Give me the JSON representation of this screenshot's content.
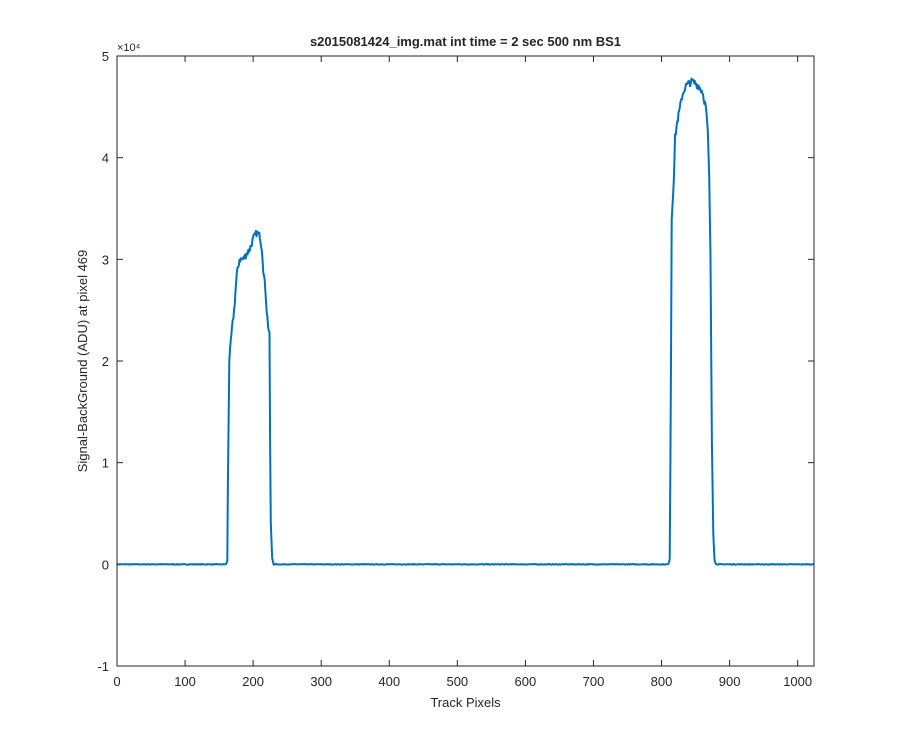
{
  "chart_data": {
    "type": "line",
    "title": "s2015081424_img.mat int time = 2 sec  500 nm BS1",
    "xlabel": "Track Pixels",
    "ylabel": "Signal-BackGround (ADU) at pixel 469",
    "xlim": [
      0,
      1024
    ],
    "ylim": [
      -10000,
      50000
    ],
    "xticks": [
      0,
      100,
      200,
      300,
      400,
      500,
      600,
      700,
      800,
      900,
      1000
    ],
    "xtick_labels": [
      "0",
      "100",
      "200",
      "300",
      "400",
      "500",
      "600",
      "700",
      "800",
      "900",
      "1000"
    ],
    "yticks": [
      -10000,
      0,
      10000,
      20000,
      30000,
      40000,
      50000
    ],
    "ytick_labels": [
      "-1",
      "0",
      "1",
      "2",
      "3",
      "4",
      "5"
    ],
    "y_exponent_label": "×10⁴",
    "grid": false,
    "line_color": "#0072BD",
    "series": [
      {
        "x": [
          0,
          100,
          160,
          162,
          163,
          165,
          168,
          172,
          176,
          180,
          185,
          190,
          195,
          200,
          205,
          210,
          213,
          215,
          218,
          220,
          222,
          224,
          225,
          226,
          228,
          230,
          300,
          400,
          500,
          600,
          700,
          800,
          810,
          812,
          813,
          815,
          818,
          820,
          823,
          826,
          830,
          835,
          840,
          845,
          850,
          855,
          860,
          865,
          868,
          870,
          872,
          874,
          876,
          878,
          880,
          900,
          1000,
          1024
        ],
        "y": [
          0,
          0,
          0,
          300,
          8000,
          20000,
          22500,
          25000,
          28500,
          30000,
          30000,
          30500,
          31000,
          32000,
          32600,
          32300,
          31000,
          29000,
          27000,
          25000,
          23500,
          22500,
          12000,
          4000,
          600,
          0,
          0,
          0,
          0,
          0,
          0,
          0,
          0,
          500,
          10000,
          34000,
          38000,
          42000,
          43500,
          44500,
          46000,
          47000,
          47300,
          47500,
          47300,
          47000,
          46500,
          45000,
          42500,
          38000,
          30000,
          12000,
          3000,
          400,
          0,
          0,
          0,
          0
        ]
      }
    ]
  }
}
